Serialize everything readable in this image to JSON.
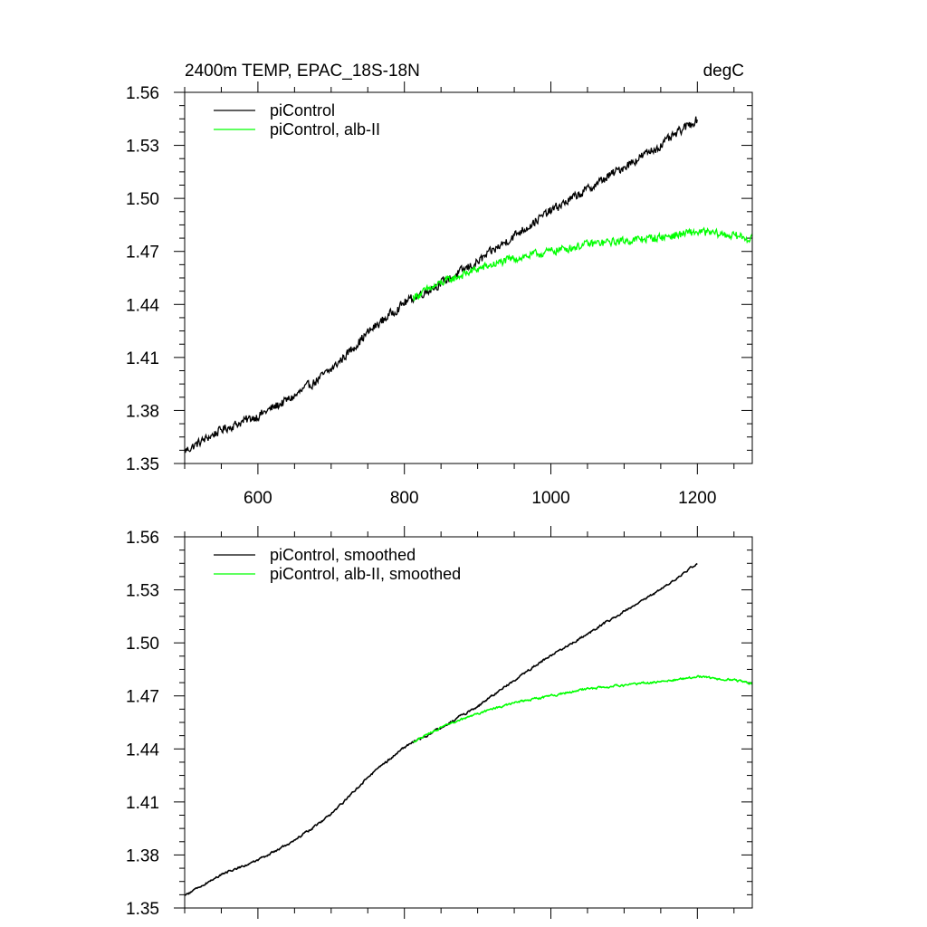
{
  "chart_data": [
    {
      "type": "line",
      "title": "2400m TEMP, EPAC_18S-18N",
      "units": "degC",
      "xlim": [
        500,
        1275
      ],
      "ylim": [
        1.35,
        1.56
      ],
      "xticks": [
        600,
        800,
        1000,
        1200
      ],
      "xtick_labels": [
        "600",
        "800",
        "1000",
        "1200"
      ],
      "yticks": [
        1.35,
        1.38,
        1.41,
        1.44,
        1.47,
        1.5,
        1.53,
        1.56
      ],
      "ytick_labels": [
        "1.35",
        "1.38",
        "1.41",
        "1.44",
        "1.47",
        "1.50",
        "1.53",
        "1.56"
      ],
      "legend_position": "top-left",
      "series": [
        {
          "name": "piControl",
          "color": "#000000",
          "noise": 0.0022,
          "x": [
            500,
            550,
            600,
            650,
            700,
            750,
            800,
            850,
            900,
            950,
            1000,
            1050,
            1100,
            1150,
            1200
          ],
          "y": [
            1.357,
            1.369,
            1.377,
            1.388,
            1.403,
            1.424,
            1.441,
            1.452,
            1.464,
            1.479,
            1.493,
            1.505,
            1.518,
            1.53,
            1.545
          ]
        },
        {
          "name": "piControl, alb-II",
          "color": "#00ff00",
          "noise": 0.002,
          "x": [
            812,
            850,
            900,
            950,
            1000,
            1050,
            1100,
            1150,
            1200,
            1250,
            1275
          ],
          "y": [
            1.444,
            1.452,
            1.46,
            1.466,
            1.47,
            1.474,
            1.476,
            1.478,
            1.481,
            1.479,
            1.477
          ]
        }
      ]
    },
    {
      "type": "line",
      "xlim": [
        500,
        1275
      ],
      "ylim": [
        1.35,
        1.56
      ],
      "xticks": [
        600,
        800,
        1000,
        1200
      ],
      "yticks": [
        1.35,
        1.38,
        1.41,
        1.44,
        1.47,
        1.5,
        1.53,
        1.56
      ],
      "ytick_labels": [
        "1.35",
        "1.38",
        "1.41",
        "1.44",
        "1.47",
        "1.50",
        "1.53",
        "1.56"
      ],
      "legend_position": "top-left",
      "series": [
        {
          "name": "piControl, smoothed",
          "color": "#000000",
          "noise": 0.0006,
          "x": [
            500,
            550,
            600,
            650,
            700,
            750,
            800,
            850,
            900,
            950,
            1000,
            1050,
            1100,
            1150,
            1200
          ],
          "y": [
            1.357,
            1.369,
            1.377,
            1.388,
            1.403,
            1.424,
            1.441,
            1.452,
            1.464,
            1.479,
            1.493,
            1.505,
            1.518,
            1.53,
            1.545
          ]
        },
        {
          "name": "piControl, alb-II, smoothed",
          "color": "#00ff00",
          "noise": 0.0006,
          "x": [
            812,
            850,
            900,
            950,
            1000,
            1050,
            1100,
            1150,
            1200,
            1250,
            1275
          ],
          "y": [
            1.444,
            1.452,
            1.46,
            1.466,
            1.47,
            1.474,
            1.476,
            1.478,
            1.481,
            1.479,
            1.477
          ]
        }
      ]
    }
  ]
}
